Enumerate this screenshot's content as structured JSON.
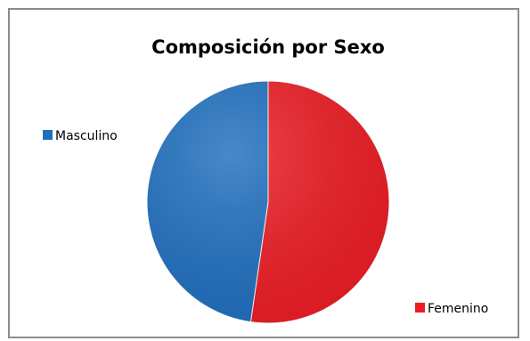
{
  "chart_data": {
    "type": "pie",
    "title": "Composición por Sexo",
    "categories": [
      "Masculino",
      "Femenino"
    ],
    "values": [
      47.7,
      52.3
    ],
    "colors": [
      "#1f6fbf",
      "#ed1c24"
    ],
    "legend": "labels beside slices"
  }
}
